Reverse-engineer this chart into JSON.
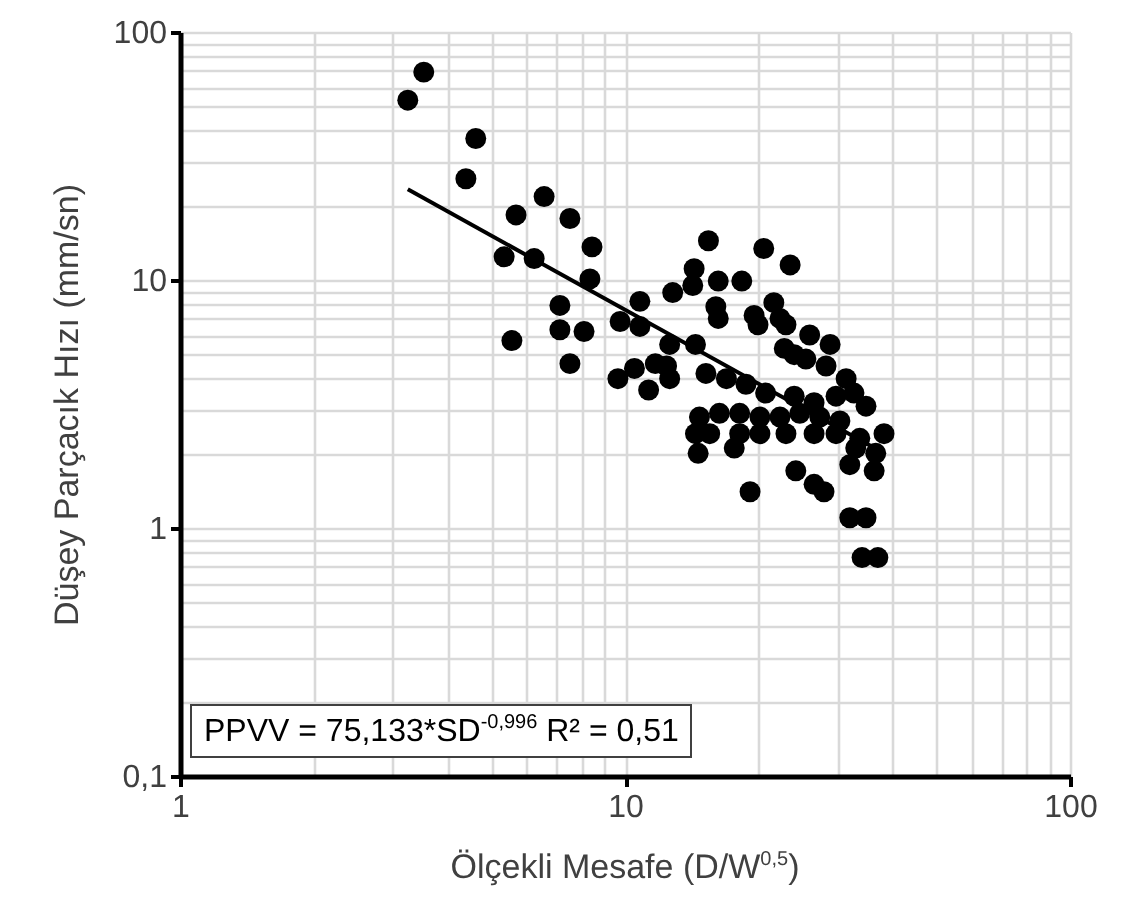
{
  "chart_data": {
    "type": "scatter",
    "xlabel": "Ölçekli Mesafe (D/W$^{0,5}$)",
    "ylabel": "Düşey Parçacık Hızı (mm/sn)",
    "annotations": [
      "PPVV = 75,133*SD$^{-0,996}$ R² = 0,51"
    ],
    "log": "xy",
    "grid": true,
    "xlim": [
      1,
      100
    ],
    "xticks": [
      1,
      10,
      100
    ],
    "ylim": [
      0.1,
      100
    ],
    "yticks": [
      {
        "value": 0.1,
        "label": "0,1"
      },
      1,
      10,
      100
    ],
    "series": [
      {
        "color": "#000000",
        "marker": "circle",
        "x": [
          3.25,
          3.53,
          4.62,
          4.39,
          6.58,
          5.69,
          7.52,
          8.43,
          5.35,
          6.25,
          8.34,
          7.14,
          7.14,
          8.09,
          5.57,
          7.52,
          9.75,
          10.8,
          10.8,
          12.8,
          12.6,
          9.64,
          10.5,
          11.3,
          11.7,
          12.4,
          12.6,
          15.4,
          20.5,
          23.5,
          14.3,
          14.2,
          16.2,
          18.3,
          16.0,
          16.2,
          21.6,
          19.5,
          19.9,
          22.3,
          23.0,
          26.0,
          28.9,
          14.4,
          22.8,
          24.0,
          25.5,
          28.3,
          15.2,
          16.9,
          18.7,
          20.7,
          24.0,
          31.4,
          29.8,
          32.7,
          26.6,
          14.7,
          16.3,
          18.1,
          20.1,
          22.3,
          24.7,
          27.4,
          30.4,
          34.8,
          14.4,
          15.5,
          18.1,
          20.1,
          23.0,
          26.6,
          29.8,
          33.7,
          38.2,
          14.6,
          17.6,
          33.0,
          36.6,
          32.0,
          36.3,
          24.2,
          26.6,
          28.0,
          19.1,
          32.0,
          34.8,
          34.1,
          37.0
        ],
        "values": [
          53.1,
          68.9,
          37.2,
          25.6,
          21.7,
          18.3,
          17.7,
          13.6,
          12.4,
          12.2,
          10.1,
          7.9,
          6.3,
          6.2,
          5.7,
          4.6,
          6.8,
          8.2,
          6.5,
          8.9,
          5.5,
          4.0,
          4.4,
          3.6,
          4.6,
          4.5,
          4.0,
          14.4,
          13.4,
          11.5,
          11.1,
          9.5,
          9.9,
          9.9,
          7.8,
          7.0,
          8.1,
          7.2,
          6.6,
          7.0,
          6.6,
          6.0,
          5.5,
          5.5,
          5.3,
          5.0,
          4.8,
          4.5,
          4.2,
          4.0,
          3.8,
          3.5,
          3.4,
          4.0,
          3.4,
          3.5,
          3.2,
          2.8,
          2.9,
          2.9,
          2.8,
          2.8,
          2.9,
          2.8,
          2.7,
          3.1,
          2.4,
          2.4,
          2.4,
          2.4,
          2.4,
          2.4,
          2.4,
          2.3,
          2.4,
          2.0,
          2.1,
          2.1,
          2.0,
          1.8,
          1.7,
          1.7,
          1.5,
          1.4,
          1.4,
          1.1,
          1.1,
          0.76,
          0.76
        ]
      },
      {
        "type": "line",
        "marker": "none",
        "color": "#000000",
        "x": [
          3.25,
          38.2
        ],
        "values": [
          23.2,
          2.0
        ]
      }
    ]
  }
}
